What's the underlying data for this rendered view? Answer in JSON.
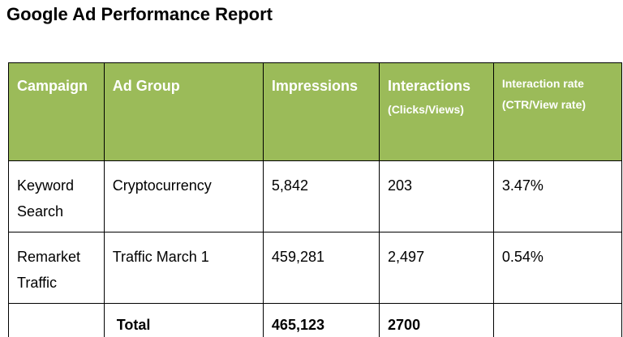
{
  "report": {
    "title": "Google Ad Performance Report"
  },
  "table": {
    "headers": {
      "campaign": "Campaign",
      "ad_group": "Ad Group",
      "impressions": "Impressions",
      "interactions": "Interactions",
      "interactions_sub": "(Clicks/Views)",
      "interaction_rate": "Interaction rate",
      "interaction_rate_sub": "(CTR/View rate)"
    },
    "rows": [
      {
        "campaign": "Keyword Search",
        "ad_group": "Cryptocurrency",
        "impressions": "5,842",
        "interactions": "203",
        "interaction_rate": "3.47%"
      },
      {
        "campaign": "Remarket Traffic",
        "ad_group": "Traffic March 1",
        "impressions": "459,281",
        "interactions": "2,497",
        "interaction_rate": "0.54%"
      }
    ],
    "total": {
      "label": "Total",
      "impressions": "465,123",
      "interactions": "2700"
    }
  },
  "colors": {
    "header_bg": "#9bbb59",
    "header_text": "#ffffff",
    "border": "#000000"
  }
}
